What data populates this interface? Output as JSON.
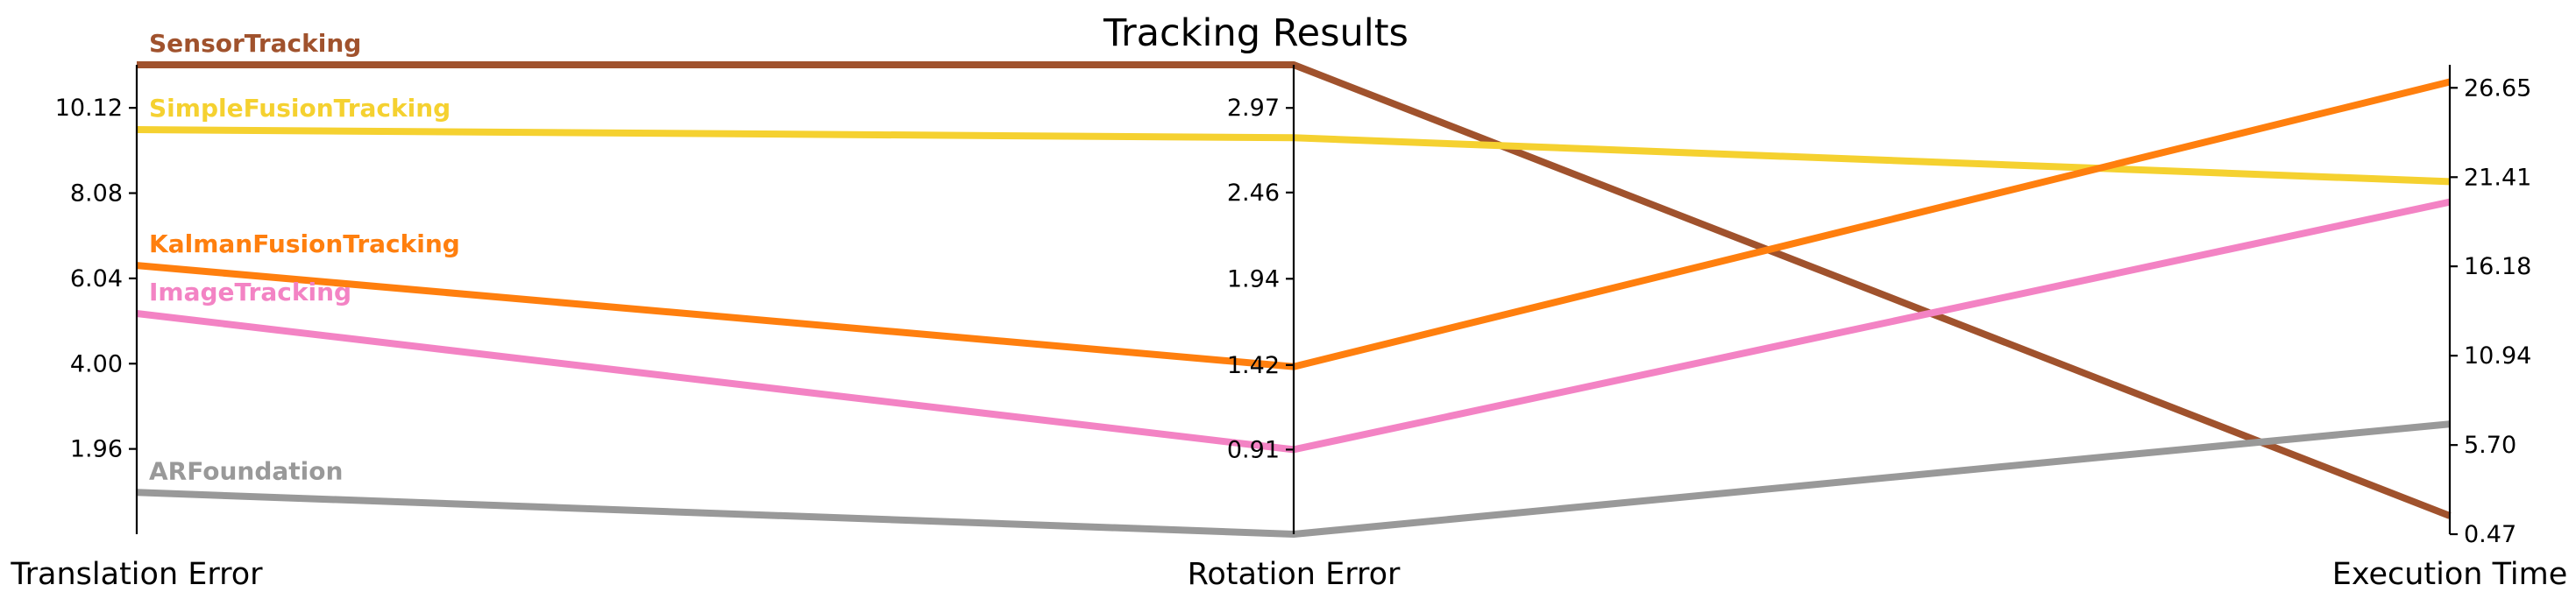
{
  "chart_data": {
    "type": "line",
    "title": "Tracking Results",
    "axes": [
      {
        "label": "Translation Error",
        "ticks": [
          "1.96",
          "4.00",
          "6.04",
          "8.08",
          "10.12"
        ],
        "range": [
          -0.08,
          11.15
        ]
      },
      {
        "label": "Rotation Error",
        "ticks": [
          "0.91",
          "1.42",
          "1.94",
          "2.46",
          "2.97"
        ],
        "range": [
          0.4,
          3.23
        ]
      },
      {
        "label": "Execution Time",
        "ticks": [
          "0.47",
          "5.70",
          "10.94",
          "16.18",
          "21.41",
          "26.65"
        ],
        "range": [
          0.47,
          28.0
        ]
      }
    ],
    "series": [
      {
        "name": "SensorTracking",
        "color": "#a0522d",
        "values": [
          11.15,
          3.23,
          1.55
        ]
      },
      {
        "name": "SimpleFusionTracking",
        "color": "#f5d130",
        "values": [
          9.6,
          2.79,
          21.15
        ]
      },
      {
        "name": "KalmanFusionTracking",
        "color": "#ff7f0e",
        "values": [
          6.35,
          1.41,
          27.0
        ]
      },
      {
        "name": "ImageTracking",
        "color": "#f383c4",
        "values": [
          5.2,
          0.91,
          19.95
        ]
      },
      {
        "name": "ARFoundation",
        "color": "#999999",
        "values": [
          0.92,
          0.4,
          6.93
        ]
      }
    ]
  }
}
